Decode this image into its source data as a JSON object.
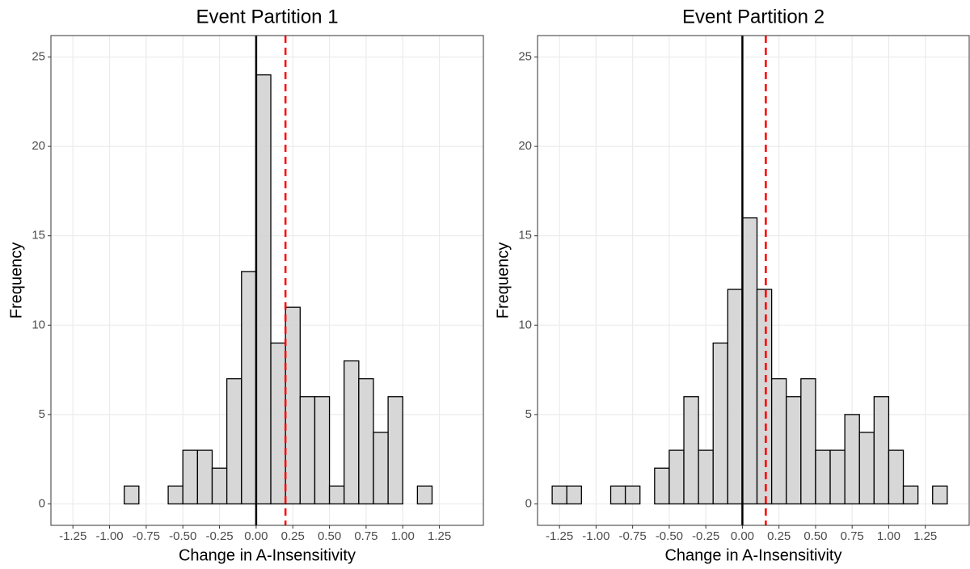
{
  "chart_data": [
    {
      "type": "histogram",
      "title": "Event Partition 1",
      "x_label": "Change in A-Insensitivity",
      "y_label": "Frequency",
      "bins": [
        -1.3,
        -1.2,
        -1.1,
        -1.0,
        -0.9,
        -0.8,
        -0.7,
        -0.6,
        -0.5,
        -0.4,
        -0.3,
        -0.2,
        -0.1,
        0,
        0.1,
        0.2,
        0.3,
        0.4,
        0.5,
        0.6,
        0.7,
        0.8,
        0.9,
        1.0,
        1.1,
        1.2,
        1.3,
        1.4
      ],
      "values": [
        0,
        0,
        0,
        0,
        1,
        0,
        0,
        1,
        3,
        3,
        2,
        7,
        13,
        24,
        9,
        11,
        6,
        6,
        1,
        8,
        7,
        4,
        6,
        0,
        1,
        0,
        0
      ],
      "color": "#d3d3d3",
      "xlim": [
        -1.4,
        1.55
      ],
      "ylim": [
        -1.2,
        26.2
      ],
      "xticks": [
        -1.25,
        {
          "value": -1,
          "label": "-1.00"
        },
        -0.75,
        {
          "value": -0.5,
          "label": "-0.50"
        },
        -0.25,
        {
          "value": 0,
          "label": "0.00"
        },
        0.25,
        {
          "value": 0.5,
          "label": "0.50"
        },
        0.75,
        {
          "value": 1,
          "label": "1.00"
        },
        1.25
      ],
      "yticks": [
        0,
        5,
        10,
        15,
        20,
        25
      ],
      "grid": true,
      "vlines": [
        {
          "x": 0,
          "color": "#000000"
        },
        {
          "x": 0.2,
          "color": "#ff0000",
          "dashed": true
        }
      ]
    },
    {
      "type": "histogram",
      "title": "Event Partition 2",
      "x_label": "Change in A-Insensitivity",
      "y_label": "Frequency",
      "bins": [
        -1.3,
        -1.2,
        -1.1,
        -1.0,
        -0.9,
        -0.8,
        -0.7,
        -0.6,
        -0.5,
        -0.4,
        -0.3,
        -0.2,
        -0.1,
        0,
        0.1,
        0.2,
        0.3,
        0.4,
        0.5,
        0.6,
        0.7,
        0.8,
        0.9,
        1.0,
        1.1,
        1.2,
        1.3,
        1.4
      ],
      "values": [
        1,
        1,
        0,
        0,
        1,
        1,
        0,
        2,
        3,
        6,
        3,
        9,
        12,
        16,
        12,
        7,
        6,
        7,
        3,
        3,
        5,
        4,
        6,
        3,
        1,
        0,
        1
      ],
      "color": "#d3d3d3",
      "xlim": [
        -1.4,
        1.55
      ],
      "ylim": [
        -1.2,
        26.2
      ],
      "xticks": [
        -1.25,
        {
          "value": -1,
          "label": "-1.00"
        },
        -0.75,
        {
          "value": -0.5,
          "label": "-0.50"
        },
        -0.25,
        {
          "value": 0,
          "label": "0.00"
        },
        0.25,
        {
          "value": 0.5,
          "label": "0.50"
        },
        0.75,
        {
          "value": 1,
          "label": "1.00"
        },
        1.25
      ],
      "yticks": [
        0,
        5,
        10,
        15,
        20,
        25
      ],
      "grid": true,
      "vlines": [
        {
          "x": 0,
          "color": "#000000"
        },
        {
          "x": 0.16,
          "color": "#ff0000",
          "dashed": true
        }
      ]
    }
  ]
}
